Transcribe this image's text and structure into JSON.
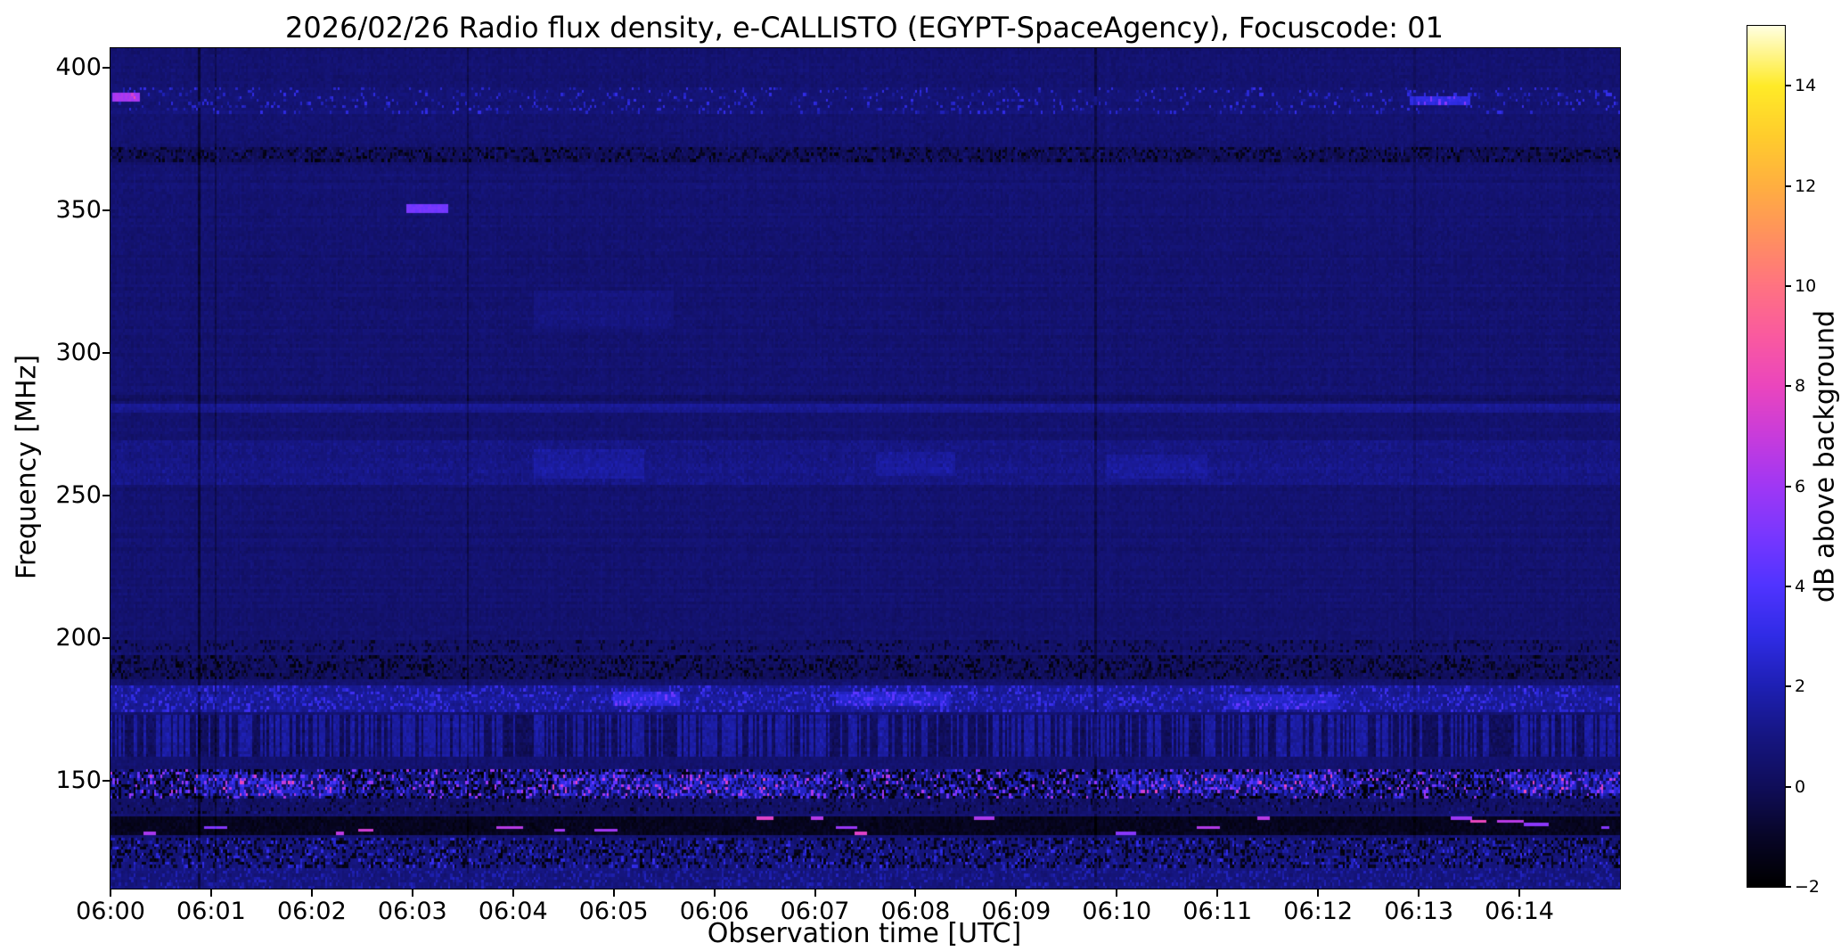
{
  "figure": {
    "background": "#ffffff",
    "text_color": "#000000"
  },
  "chart_data": {
    "type": "heatmap",
    "title": "2026/02/26  Radio flux density, e-CALLISTO (EGYPT-SpaceAgency), Focuscode: 01",
    "xlabel": "Observation time [UTC]",
    "ylabel": "Frequency [MHz]",
    "colorbar_label": "dB above background",
    "x_start_time": "06:00",
    "x_range_minutes": [
      0,
      15
    ],
    "x_ticks": [
      {
        "t": 0,
        "label": "06:00"
      },
      {
        "t": 1,
        "label": "06:01"
      },
      {
        "t": 2,
        "label": "06:02"
      },
      {
        "t": 3,
        "label": "06:03"
      },
      {
        "t": 4,
        "label": "06:04"
      },
      {
        "t": 5,
        "label": "06:05"
      },
      {
        "t": 6,
        "label": "06:06"
      },
      {
        "t": 7,
        "label": "06:07"
      },
      {
        "t": 8,
        "label": "06:08"
      },
      {
        "t": 9,
        "label": "06:09"
      },
      {
        "t": 10,
        "label": "06:10"
      },
      {
        "t": 11,
        "label": "06:11"
      },
      {
        "t": 12,
        "label": "06:12"
      },
      {
        "t": 13,
        "label": "06:13"
      },
      {
        "t": 14,
        "label": "06:14"
      }
    ],
    "y_range_mhz": [
      112,
      407
    ],
    "y_ticks": [
      {
        "f": 400,
        "label": "400"
      },
      {
        "f": 350,
        "label": "350"
      },
      {
        "f": 300,
        "label": "300"
      },
      {
        "f": 250,
        "label": "250"
      },
      {
        "f": 200,
        "label": "200"
      },
      {
        "f": 150,
        "label": "150"
      }
    ],
    "value_range_db": [
      -2,
      15.2
    ],
    "colorbar_ticks": [
      {
        "v": 14,
        "label": "14"
      },
      {
        "v": 12,
        "label": "12"
      },
      {
        "v": 10,
        "label": "10"
      },
      {
        "v": 8,
        "label": "8"
      },
      {
        "v": 6,
        "label": "6"
      },
      {
        "v": 4,
        "label": "4"
      },
      {
        "v": 2,
        "label": "2"
      },
      {
        "v": 0,
        "label": "0"
      },
      {
        "v": -2,
        "label": "−2"
      }
    ],
    "colormap_stops": [
      [
        -2,
        0,
        0,
        0
      ],
      [
        -1,
        8,
        6,
        40
      ],
      [
        0,
        16,
        14,
        90
      ],
      [
        1,
        22,
        22,
        130
      ],
      [
        2,
        30,
        32,
        180
      ],
      [
        3,
        48,
        44,
        230
      ],
      [
        4,
        80,
        52,
        255
      ],
      [
        5,
        120,
        55,
        255
      ],
      [
        6,
        160,
        55,
        245
      ],
      [
        7,
        200,
        60,
        220
      ],
      [
        8,
        235,
        70,
        190
      ],
      [
        9,
        250,
        90,
        160
      ],
      [
        10,
        255,
        115,
        130
      ],
      [
        11,
        255,
        145,
        95
      ],
      [
        12,
        255,
        175,
        65
      ],
      [
        13,
        255,
        205,
        45
      ],
      [
        14,
        255,
        235,
        40
      ],
      [
        15.2,
        255,
        255,
        224
      ]
    ],
    "background_level_db": 0.55,
    "noise_sigma_db": 0.28,
    "grid": {
      "cols": 724,
      "rows": 281
    },
    "seed": 20260226,
    "bands": [
      {
        "f": [
          384,
          393
        ],
        "type": "speckle",
        "p": 0.1,
        "v": [
          1.4,
          3.2
        ],
        "add": 0.15
      },
      {
        "f": [
          367,
          372.5
        ],
        "type": "speckle",
        "p": 0.52,
        "v": [
          -1.9,
          1.0
        ],
        "add": -0.45
      },
      {
        "f": [
          279,
          282
        ],
        "type": "haze",
        "add": 0.75
      },
      {
        "f": [
          283,
          285
        ],
        "type": "haze",
        "add": -0.35
      },
      {
        "f": [
          254,
          269
        ],
        "type": "haze",
        "add": 0.45,
        "noise": 0.3
      },
      {
        "f": [
          195,
          199
        ],
        "type": "speckle",
        "p": 0.3,
        "v": [
          -1.4,
          0.6
        ],
        "add": -0.1
      },
      {
        "f": [
          186,
          194
        ],
        "type": "speckle",
        "p": 0.5,
        "v": [
          -1.9,
          0.8
        ],
        "add": -0.4
      },
      {
        "f": [
          174,
          183
        ],
        "type": "speckle",
        "p": 0.38,
        "v": [
          1.0,
          3.6
        ],
        "add": 0.8
      },
      {
        "f": [
          158,
          173
        ],
        "type": "stripes",
        "amp": 1.1,
        "add": 0.25
      },
      {
        "f": [
          144,
          154
        ],
        "type": "rfi",
        "pd": 0.33,
        "dark": [
          -2,
          -1.1
        ],
        "pb": 0.34,
        "bright": [
          1.2,
          6.8
        ],
        "add": 0.25
      },
      {
        "f": [
          138,
          144
        ],
        "type": "speckle",
        "p": 0.25,
        "v": [
          -1.6,
          1.4
        ],
        "add": -0.25
      },
      {
        "f": [
          131,
          137
        ],
        "type": "dashes",
        "base": -1.25,
        "pdash": 0.004,
        "len": [
          3,
          13
        ],
        "v": [
          5.2,
          8.2
        ]
      },
      {
        "f": [
          119,
          130
        ],
        "type": "rfi",
        "pd": 0.26,
        "dark": [
          -1.9,
          -0.8
        ],
        "pb": 0.38,
        "bright": [
          0.7,
          3.4
        ],
        "add": 0.2
      },
      {
        "f": [
          112,
          119
        ],
        "type": "speckle",
        "p": 0.42,
        "v": [
          0.4,
          2.3
        ],
        "add": 0.3
      }
    ],
    "blobs": [
      {
        "t": [
          0.02,
          0.3
        ],
        "f": [
          388,
          391
        ],
        "add": 5.5
      },
      {
        "t": [
          12.9,
          13.5
        ],
        "f": [
          387,
          390
        ],
        "add": 2.3
      },
      {
        "t": [
          2.95,
          3.35
        ],
        "f": [
          349,
          352
        ],
        "add": 4.3
      },
      {
        "t": [
          4.2,
          5.6
        ],
        "f": [
          308,
          322
        ],
        "add": 0.35
      },
      {
        "t": [
          4.2,
          5.3
        ],
        "f": [
          256,
          266
        ],
        "add": 0.55
      },
      {
        "t": [
          7.6,
          8.4
        ],
        "f": [
          257,
          265
        ],
        "add": 0.5
      },
      {
        "t": [
          9.9,
          10.9
        ],
        "f": [
          256,
          264
        ],
        "add": 0.45
      },
      {
        "t": [
          5.0,
          5.65
        ],
        "f": [
          176,
          181
        ],
        "add": 1.5
      },
      {
        "t": [
          7.2,
          8.35
        ],
        "f": [
          176,
          181
        ],
        "add": 1.1
      },
      {
        "t": [
          11.1,
          12.2
        ],
        "f": [
          175,
          180
        ],
        "add": 1.0
      },
      {
        "t": [
          0.85,
          2.35
        ],
        "f": [
          145,
          152
        ],
        "add": 1.7
      },
      {
        "t": [
          4.4,
          7.1
        ],
        "f": [
          145,
          152
        ],
        "add": 1.5
      },
      {
        "t": [
          10.0,
          12.25
        ],
        "f": [
          146,
          152
        ],
        "add": 1.4
      },
      {
        "t": [
          13.9,
          15.0
        ],
        "f": [
          146,
          153
        ],
        "add": 1.6
      }
    ],
    "vertical_lines": [
      {
        "t": 0.88,
        "delta": -1.3
      },
      {
        "t": 1.03,
        "delta": -0.8
      },
      {
        "t": 3.55,
        "delta": -0.8
      },
      {
        "t": 9.78,
        "delta": -1.0
      },
      {
        "t": 12.95,
        "delta": -0.5
      }
    ]
  }
}
